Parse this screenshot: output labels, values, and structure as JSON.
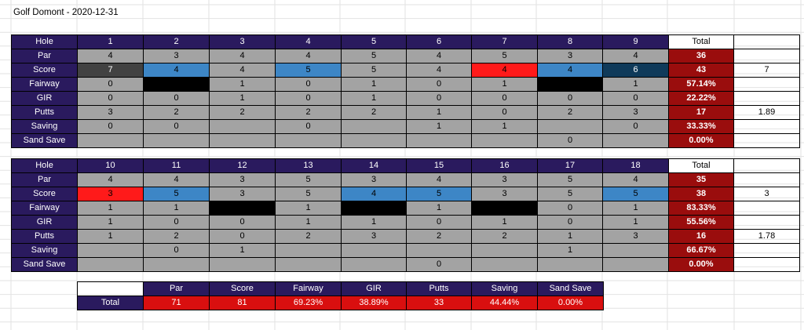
{
  "title": "Golf Domont - 2020-12-31",
  "colors": {
    "header_bg": "#2a1a5e",
    "cell_bg": "#a3a3a3",
    "total_bg": "#9a0d0d",
    "summary_bg": "#d90f0f",
    "score_blue": "#3d86c6",
    "score_red": "#ff1a1a",
    "score_navy": "#0f3a5a",
    "score_dark": "#424242"
  },
  "front": {
    "row_labels": [
      "Hole",
      "Par",
      "Score",
      "Fairway",
      "GIR",
      "Putts",
      "Saving",
      "Sand Save"
    ],
    "holes": [
      "1",
      "2",
      "3",
      "4",
      "5",
      "6",
      "7",
      "8",
      "9"
    ],
    "total_label": "Total",
    "par": [
      "4",
      "3",
      "4",
      "4",
      "5",
      "4",
      "5",
      "3",
      "4"
    ],
    "score": [
      "7",
      "4",
      "4",
      "5",
      "5",
      "4",
      "4",
      "4",
      "6"
    ],
    "score_style": [
      "dark",
      "blue",
      "plain",
      "blue",
      "plain",
      "plain",
      "red",
      "blue",
      "navy"
    ],
    "fairway": [
      "0",
      "",
      "1",
      "0",
      "1",
      "0",
      "1",
      "",
      "1"
    ],
    "fairway_style": [
      "plain",
      "black",
      "plain",
      "plain",
      "plain",
      "plain",
      "plain",
      "black",
      "plain"
    ],
    "gir": [
      "0",
      "0",
      "1",
      "0",
      "1",
      "0",
      "0",
      "0",
      "0"
    ],
    "putts": [
      "3",
      "2",
      "2",
      "2",
      "2",
      "1",
      "0",
      "2",
      "3"
    ],
    "saving": [
      "0",
      "0",
      "",
      "0",
      "",
      "1",
      "1",
      "",
      "0"
    ],
    "sand_save": [
      "",
      "",
      "",
      "",
      "",
      "",
      "",
      "0",
      ""
    ],
    "totals": [
      "36",
      "43",
      "57.14%",
      "22.22%",
      "17",
      "33.33%",
      "0.00%"
    ],
    "side_values": [
      "",
      "7",
      "",
      "",
      "1.89",
      "",
      ""
    ]
  },
  "back": {
    "row_labels": [
      "Hole",
      "Par",
      "Score",
      "Fairway",
      "GIR",
      "Putts",
      "Saving",
      "Sand Save"
    ],
    "holes": [
      "10",
      "11",
      "12",
      "13",
      "14",
      "15",
      "16",
      "17",
      "18"
    ],
    "total_label": "Total",
    "par": [
      "4",
      "4",
      "3",
      "5",
      "3",
      "4",
      "3",
      "5",
      "4"
    ],
    "score": [
      "3",
      "5",
      "3",
      "5",
      "4",
      "5",
      "3",
      "5",
      "5"
    ],
    "score_style": [
      "red",
      "blue",
      "plain",
      "plain",
      "blue",
      "blue",
      "plain",
      "plain",
      "blue"
    ],
    "fairway": [
      "1",
      "1",
      "",
      "1",
      "",
      "1",
      "",
      "0",
      "1"
    ],
    "fairway_style": [
      "plain",
      "plain",
      "black",
      "plain",
      "black",
      "plain",
      "black",
      "plain",
      "plain"
    ],
    "gir": [
      "1",
      "0",
      "0",
      "1",
      "1",
      "0",
      "1",
      "0",
      "1"
    ],
    "putts": [
      "1",
      "2",
      "0",
      "2",
      "3",
      "2",
      "2",
      "1",
      "3"
    ],
    "saving": [
      "",
      "0",
      "1",
      "",
      "",
      "",
      "",
      "1",
      ""
    ],
    "sand_save": [
      "",
      "",
      "",
      "",
      "",
      "0",
      "",
      "",
      ""
    ],
    "totals": [
      "35",
      "38",
      "83.33%",
      "55.56%",
      "16",
      "66.67%",
      "0.00%"
    ],
    "side_values": [
      "",
      "3",
      "",
      "",
      "1.78",
      "",
      ""
    ]
  },
  "summary": {
    "headers": [
      "Par",
      "Score",
      "Fairway",
      "GIR",
      "Putts",
      "Saving",
      "Sand Save"
    ],
    "row_label": "Total",
    "values": [
      "71",
      "81",
      "69.23%",
      "38.89%",
      "33",
      "44.44%",
      "0.00%"
    ]
  }
}
